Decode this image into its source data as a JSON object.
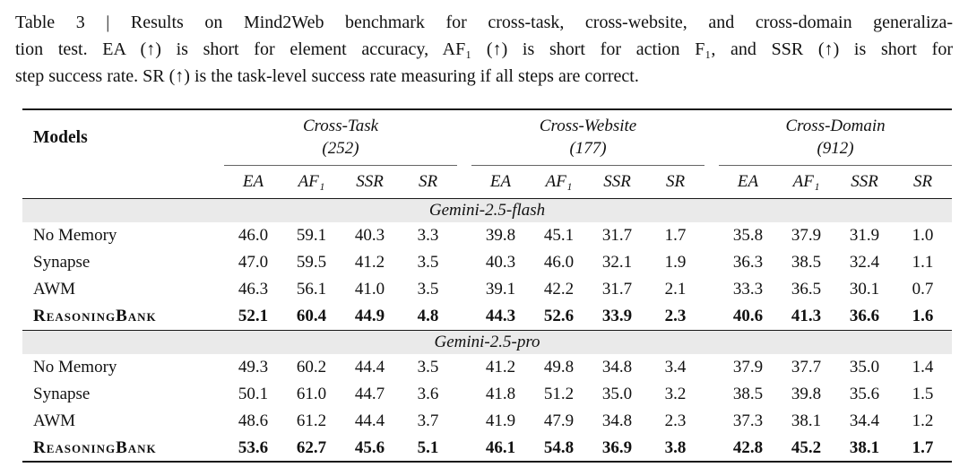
{
  "caption": {
    "line1": "Table 3 | Results on Mind2Web benchmark for cross-task, cross-website, and cross-domain generaliza-",
    "line2": "tion test. EA (↑) is short for element accuracy, AF₁ (↑) is short for action F₁, and SSR (↑) is short for",
    "line3": "step success rate. SR (↑) is the task-level success rate measuring if all steps are correct."
  },
  "table": {
    "models_header": "Models",
    "groups": [
      {
        "name": "Cross-Task",
        "count": "(252)"
      },
      {
        "name": "Cross-Website",
        "count": "(177)"
      },
      {
        "name": "Cross-Domain",
        "count": "(912)"
      }
    ],
    "metrics": [
      "EA",
      "AF₁",
      "SSR",
      "SR"
    ],
    "sections": [
      {
        "title": "Gemini-2.5-flash",
        "rows": [
          {
            "model": "No Memory",
            "values": [
              "46.0",
              "59.1",
              "40.3",
              "3.3",
              "39.8",
              "45.1",
              "31.7",
              "1.7",
              "35.8",
              "37.9",
              "31.9",
              "1.0"
            ]
          },
          {
            "model": "Synapse",
            "values": [
              "47.0",
              "59.5",
              "41.2",
              "3.5",
              "40.3",
              "46.0",
              "32.1",
              "1.9",
              "36.3",
              "38.5",
              "32.4",
              "1.1"
            ]
          },
          {
            "model": "AWM",
            "values": [
              "46.3",
              "56.1",
              "41.0",
              "3.5",
              "39.1",
              "42.2",
              "31.7",
              "2.1",
              "33.3",
              "36.5",
              "30.1",
              "0.7"
            ]
          },
          {
            "model": "ReasoningBank",
            "values": [
              "52.1",
              "60.4",
              "44.9",
              "4.8",
              "44.3",
              "52.6",
              "33.9",
              "2.3",
              "40.6",
              "41.3",
              "36.6",
              "1.6"
            ]
          }
        ]
      },
      {
        "title": "Gemini-2.5-pro",
        "rows": [
          {
            "model": "No Memory",
            "values": [
              "49.3",
              "60.2",
              "44.4",
              "3.5",
              "41.2",
              "49.8",
              "34.8",
              "3.4",
              "37.9",
              "37.7",
              "35.0",
              "1.4"
            ]
          },
          {
            "model": "Synapse",
            "values": [
              "50.1",
              "61.0",
              "44.7",
              "3.6",
              "41.8",
              "51.2",
              "35.0",
              "3.2",
              "38.5",
              "39.8",
              "35.6",
              "1.5"
            ]
          },
          {
            "model": "AWM",
            "values": [
              "48.6",
              "61.2",
              "44.4",
              "3.7",
              "41.9",
              "47.9",
              "34.8",
              "2.3",
              "37.3",
              "38.1",
              "34.4",
              "1.2"
            ]
          },
          {
            "model": "ReasoningBank",
            "values": [
              "53.6",
              "62.7",
              "45.6",
              "5.1",
              "46.1",
              "54.8",
              "36.9",
              "3.8",
              "42.8",
              "45.2",
              "38.1",
              "1.7"
            ]
          }
        ]
      }
    ],
    "band_color": "#eaeaea"
  }
}
